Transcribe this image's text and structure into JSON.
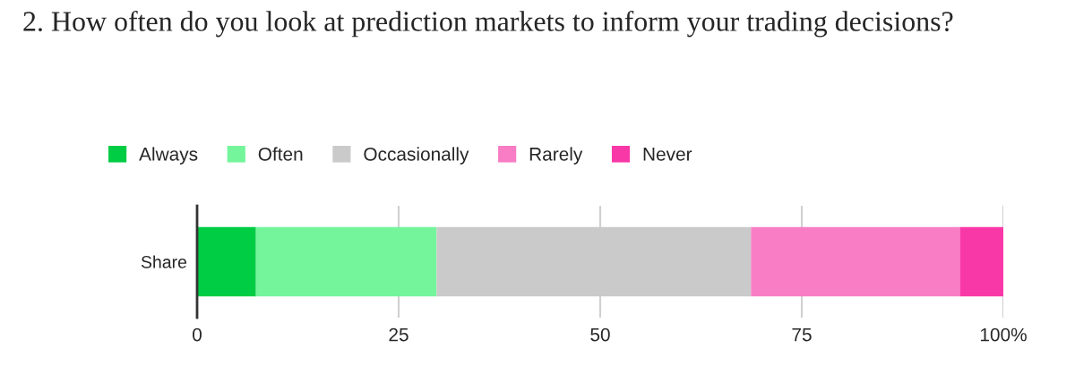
{
  "chart_data": {
    "type": "bar",
    "orientation": "horizontal",
    "stacked": true,
    "title": "2. How often do you look at prediction markets to inform your trading decisions?",
    "categories": [
      "Share"
    ],
    "series": [
      {
        "name": "Always",
        "color": "#00cc44",
        "values": [
          7.3
        ]
      },
      {
        "name": "Often",
        "color": "#74f59b",
        "values": [
          22.4
        ]
      },
      {
        "name": "Occasionally",
        "color": "#cacaca",
        "values": [
          39.0
        ]
      },
      {
        "name": "Rarely",
        "color": "#f87dc4",
        "values": [
          25.9
        ]
      },
      {
        "name": "Never",
        "color": "#f938a8",
        "values": [
          5.4
        ]
      }
    ],
    "xlim": [
      0,
      100
    ],
    "xticks": [
      0,
      25,
      50,
      75,
      {
        "value": 100,
        "label": "100%"
      }
    ],
    "grid": "x",
    "legend": "top"
  }
}
